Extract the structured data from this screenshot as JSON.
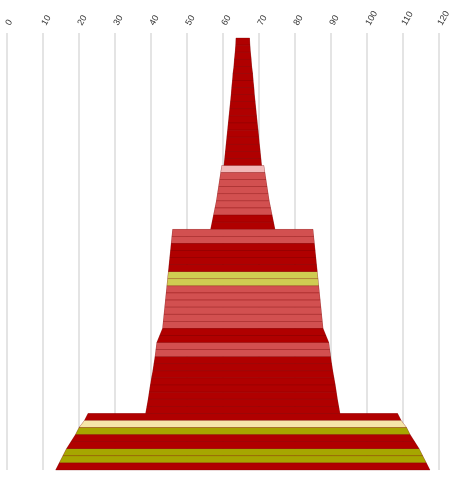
{
  "chart_data": {
    "type": "bar",
    "orientation": "horizontal",
    "style": "centered stacked funnel with sloped band edges",
    "axis": {
      "position": "top",
      "min": 0,
      "max": 120,
      "ticks": [
        0,
        10,
        20,
        30,
        40,
        50,
        60,
        70,
        80,
        90,
        100,
        110,
        120
      ],
      "tick_labels": [
        "0",
        "10",
        "20",
        "30",
        "40",
        "50",
        "60",
        "70",
        "80",
        "90",
        "100",
        "110",
        "120"
      ],
      "label_rotation": -60,
      "grid": true
    },
    "center": 65.5,
    "colors": {
      "dark_red": "#b00000",
      "salmon": "#d25050",
      "pink": "#f2b8b8",
      "yellow": "#cfcc52",
      "olive": "#a6a600",
      "cream": "#f5e6a8",
      "gridline": "#c8c8c8"
    },
    "bands": [
      {
        "top_width": 3.8,
        "bottom_width": 4.0,
        "color": "dark_red"
      },
      {
        "top_width": 4.0,
        "bottom_width": 4.3,
        "color": "dark_red"
      },
      {
        "top_width": 4.3,
        "bottom_width": 4.7,
        "color": "dark_red"
      },
      {
        "top_width": 4.7,
        "bottom_width": 5.0,
        "color": "dark_red"
      },
      {
        "top_width": 5.0,
        "bottom_width": 5.5,
        "color": "dark_red"
      },
      {
        "top_width": 5.5,
        "bottom_width": 5.8,
        "color": "dark_red"
      },
      {
        "top_width": 5.8,
        "bottom_width": 6.2,
        "color": "dark_red"
      },
      {
        "top_width": 6.2,
        "bottom_width": 6.5,
        "color": "dark_red"
      },
      {
        "top_width": 6.5,
        "bottom_width": 6.9,
        "color": "dark_red"
      },
      {
        "top_width": 6.9,
        "bottom_width": 7.3,
        "color": "dark_red"
      },
      {
        "top_width": 7.3,
        "bottom_width": 7.7,
        "color": "dark_red"
      },
      {
        "top_width": 7.7,
        "bottom_width": 8.1,
        "color": "dark_red"
      },
      {
        "top_width": 8.1,
        "bottom_width": 8.5,
        "color": "dark_red"
      },
      {
        "top_width": 8.5,
        "bottom_width": 8.9,
        "color": "dark_red"
      },
      {
        "top_width": 8.9,
        "bottom_width": 9.3,
        "color": "dark_red"
      },
      {
        "top_width": 9.3,
        "bottom_width": 9.7,
        "color": "dark_red"
      },
      {
        "top_width": 9.7,
        "bottom_width": 10.1,
        "color": "dark_red"
      },
      {
        "top_width": 10.1,
        "bottom_width": 10.5,
        "color": "dark_red"
      },
      {
        "top_width": 11.7,
        "bottom_width": 12.3,
        "color": "pink"
      },
      {
        "top_width": 12.3,
        "bottom_width": 12.9,
        "color": "salmon"
      },
      {
        "top_width": 12.9,
        "bottom_width": 13.5,
        "color": "salmon"
      },
      {
        "top_width": 13.5,
        "bottom_width": 14.1,
        "color": "salmon"
      },
      {
        "top_width": 14.1,
        "bottom_width": 14.7,
        "color": "salmon"
      },
      {
        "top_width": 14.7,
        "bottom_width": 15.5,
        "color": "salmon"
      },
      {
        "top_width": 15.5,
        "bottom_width": 16.3,
        "color": "salmon"
      },
      {
        "top_width": 16.3,
        "bottom_width": 17.1,
        "color": "dark_red"
      },
      {
        "top_width": 17.1,
        "bottom_width": 17.9,
        "color": "dark_red"
      },
      {
        "top_width": 39.0,
        "bottom_width": 39.4,
        "color": "salmon"
      },
      {
        "top_width": 39.4,
        "bottom_width": 39.8,
        "color": "salmon"
      },
      {
        "top_width": 39.8,
        "bottom_width": 40.2,
        "color": "dark_red"
      },
      {
        "top_width": 40.2,
        "bottom_width": 40.6,
        "color": "dark_red"
      },
      {
        "top_width": 40.6,
        "bottom_width": 41.0,
        "color": "dark_red"
      },
      {
        "top_width": 41.0,
        "bottom_width": 41.4,
        "color": "dark_red"
      },
      {
        "top_width": 41.4,
        "bottom_width": 41.8,
        "color": "yellow"
      },
      {
        "top_width": 41.8,
        "bottom_width": 42.2,
        "color": "yellow"
      },
      {
        "top_width": 42.2,
        "bottom_width": 42.6,
        "color": "salmon"
      },
      {
        "top_width": 42.6,
        "bottom_width": 43.0,
        "color": "salmon"
      },
      {
        "top_width": 43.0,
        "bottom_width": 43.4,
        "color": "salmon"
      },
      {
        "top_width": 43.4,
        "bottom_width": 43.8,
        "color": "salmon"
      },
      {
        "top_width": 43.8,
        "bottom_width": 44.2,
        "color": "salmon"
      },
      {
        "top_width": 44.2,
        "bottom_width": 44.6,
        "color": "salmon"
      },
      {
        "top_width": 44.6,
        "bottom_width": 46.2,
        "color": "dark_red"
      },
      {
        "top_width": 46.2,
        "bottom_width": 47.8,
        "color": "dark_red"
      },
      {
        "top_width": 47.8,
        "bottom_width": 48.3,
        "color": "salmon"
      },
      {
        "top_width": 48.3,
        "bottom_width": 48.8,
        "color": "salmon"
      },
      {
        "top_width": 48.8,
        "bottom_width": 49.4,
        "color": "dark_red"
      },
      {
        "top_width": 49.4,
        "bottom_width": 50.0,
        "color": "dark_red"
      },
      {
        "top_width": 50.0,
        "bottom_width": 50.7,
        "color": "dark_red"
      },
      {
        "top_width": 50.7,
        "bottom_width": 51.4,
        "color": "dark_red"
      },
      {
        "top_width": 51.4,
        "bottom_width": 52.0,
        "color": "dark_red"
      },
      {
        "top_width": 52.0,
        "bottom_width": 52.6,
        "color": "dark_red"
      },
      {
        "top_width": 52.6,
        "bottom_width": 53.3,
        "color": "dark_red"
      },
      {
        "top_width": 53.3,
        "bottom_width": 54.0,
        "color": "dark_red"
      },
      {
        "top_width": 86.0,
        "bottom_width": 88.0,
        "color": "dark_red"
      },
      {
        "top_width": 88.0,
        "bottom_width": 91.0,
        "color": "cream"
      },
      {
        "top_width": 91.0,
        "bottom_width": 93.0,
        "color": "olive"
      },
      {
        "top_width": 93.0,
        "bottom_width": 95.5,
        "color": "dark_red"
      },
      {
        "top_width": 95.5,
        "bottom_width": 98.0,
        "color": "dark_red"
      },
      {
        "top_width": 98.0,
        "bottom_width": 100.0,
        "color": "olive"
      },
      {
        "top_width": 100.0,
        "bottom_width": 102.0,
        "color": "olive"
      },
      {
        "top_width": 102.0,
        "bottom_width": 104.0,
        "color": "dark_red"
      }
    ]
  }
}
